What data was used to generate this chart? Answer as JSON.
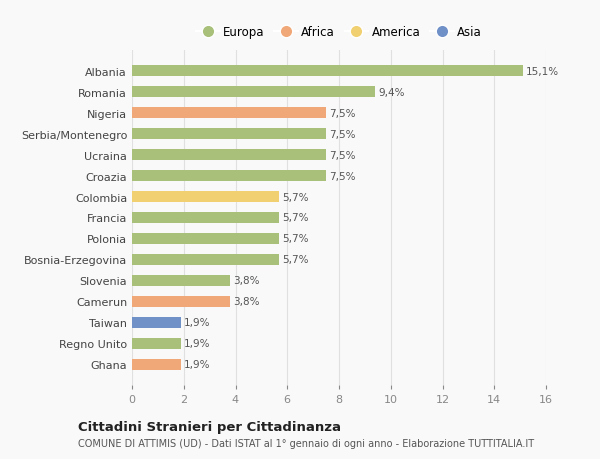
{
  "countries": [
    "Albania",
    "Romania",
    "Nigeria",
    "Serbia/Montenegro",
    "Ucraina",
    "Croazia",
    "Colombia",
    "Francia",
    "Polonia",
    "Bosnia-Erzegovina",
    "Slovenia",
    "Camerun",
    "Taiwan",
    "Regno Unito",
    "Ghana"
  ],
  "values": [
    15.1,
    9.4,
    7.5,
    7.5,
    7.5,
    7.5,
    5.7,
    5.7,
    5.7,
    5.7,
    3.8,
    3.8,
    1.9,
    1.9,
    1.9
  ],
  "labels": [
    "15,1%",
    "9,4%",
    "7,5%",
    "7,5%",
    "7,5%",
    "7,5%",
    "5,7%",
    "5,7%",
    "5,7%",
    "5,7%",
    "3,8%",
    "3,8%",
    "1,9%",
    "1,9%",
    "1,9%"
  ],
  "categories": [
    "Europa",
    "Africa",
    "America",
    "Asia"
  ],
  "bar_colors": [
    "#a8c07a",
    "#a8c07a",
    "#f0a878",
    "#a8c07a",
    "#a8c07a",
    "#a8c07a",
    "#f0d070",
    "#a8c07a",
    "#a8c07a",
    "#a8c07a",
    "#a8c07a",
    "#f0a878",
    "#7090c8",
    "#a8c07a",
    "#f0a878"
  ],
  "legend_colors": [
    "#a8c07a",
    "#f0a878",
    "#f0d070",
    "#7090c8"
  ],
  "title": "Cittadini Stranieri per Cittadinanza",
  "subtitle": "COMUNE DI ATTIMIS (UD) - Dati ISTAT al 1° gennaio di ogni anno - Elaborazione TUTTITALIA.IT",
  "xlim": [
    0,
    16
  ],
  "xticks": [
    0,
    2,
    4,
    6,
    8,
    10,
    12,
    14,
    16
  ],
  "background_color": "#f9f9f9",
  "grid_color": "#e0e0e0",
  "bar_height": 0.55
}
